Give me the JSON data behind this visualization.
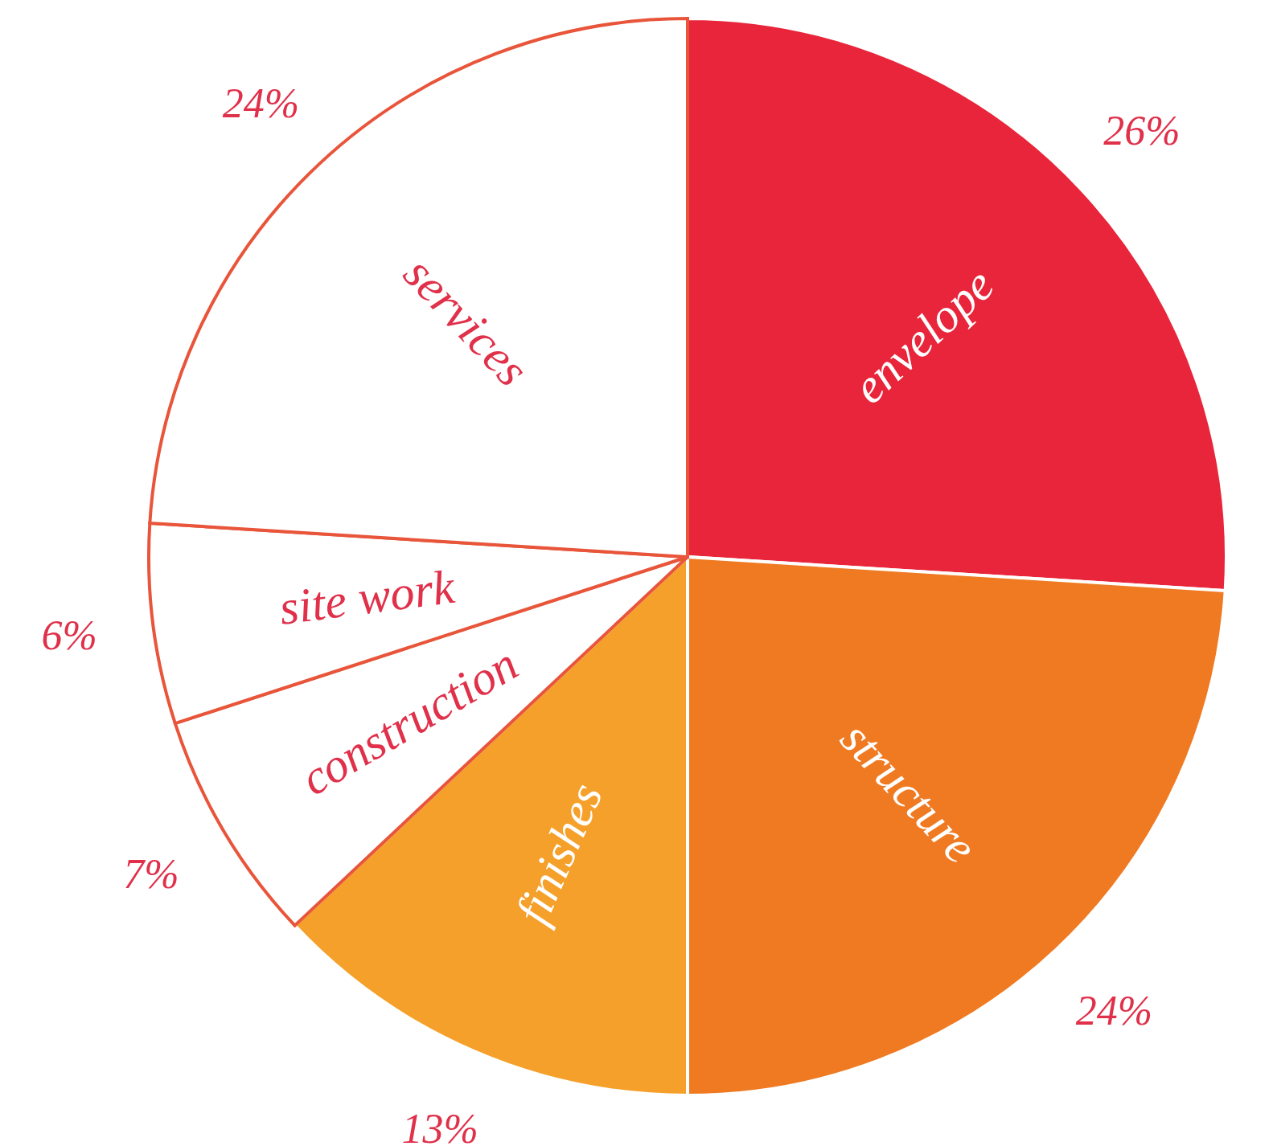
{
  "chart_data": {
    "type": "pie",
    "categories": [
      "envelope",
      "structure",
      "finishes",
      "construction",
      "site work",
      "services"
    ],
    "values": [
      26,
      24,
      13,
      7,
      6,
      24
    ],
    "colors": [
      "#e8253a",
      "#ef7a22",
      "#f5a02a",
      "#ffffff",
      "#ffffff",
      "#ffffff"
    ],
    "value_labels": [
      "26%",
      "24%",
      "13%",
      "7%",
      "6%",
      "24%"
    ]
  }
}
